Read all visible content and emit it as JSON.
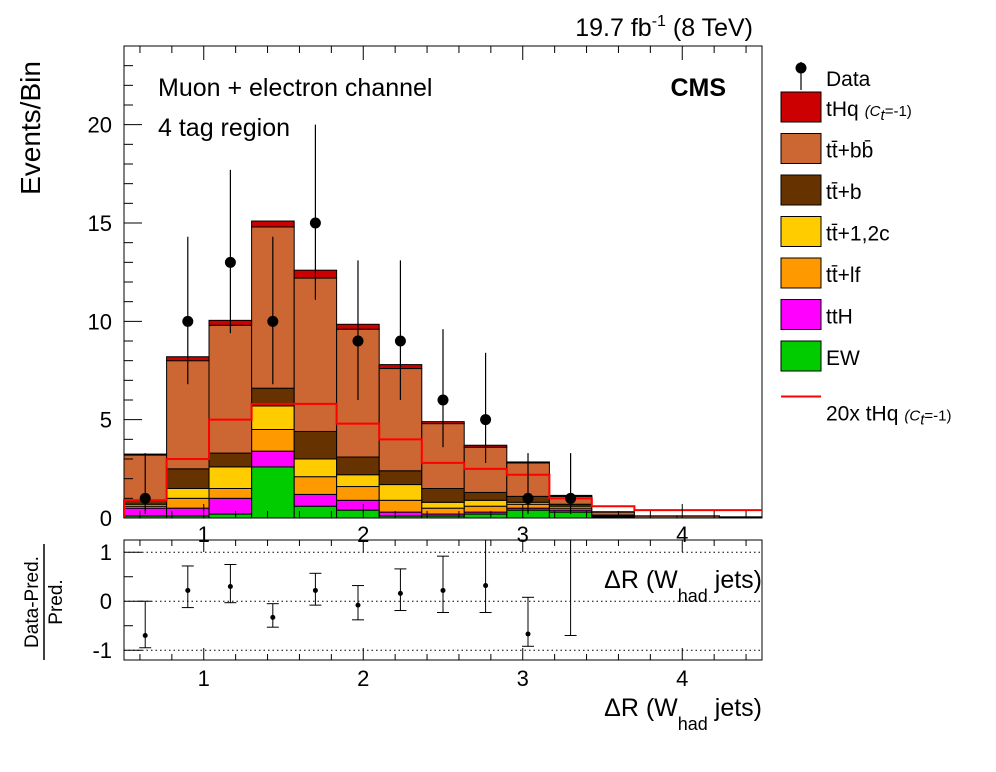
{
  "chart_data": {
    "type": "histogram-stacked",
    "lumi_label": {
      "value": "19.7 fb",
      "sup": "-1",
      "energy": " (8 TeV)"
    },
    "experiment": "CMS",
    "annotations": [
      "Muon + electron channel",
      "4 tag region"
    ],
    "ylabel": "Events/Bin",
    "xlabel": {
      "main": "ΔR (W",
      "sub": "had",
      "tail": " jets)"
    },
    "ratio_ylabel": {
      "num": "Data-Pred.",
      "den": "Pred."
    },
    "xlim": [
      0.5,
      4.5
    ],
    "ylim": [
      0,
      24
    ],
    "ratio_ylim": [
      -1.2,
      1.25
    ],
    "x_ticks": [
      1,
      2,
      3,
      4
    ],
    "y_ticks": [
      0,
      5,
      10,
      15,
      20
    ],
    "ratio_y_ticks": [
      -1,
      0,
      1
    ],
    "bin_edges": [
      0.5,
      0.767,
      1.033,
      1.3,
      1.567,
      1.833,
      2.1,
      2.367,
      2.633,
      2.9,
      3.167,
      3.433,
      3.7,
      3.967,
      4.233,
      4.5
    ],
    "stack": [
      {
        "name": "EW",
        "color": "#00cc00",
        "values": [
          0.1,
          0.1,
          0.2,
          2.6,
          0.6,
          0.4,
          0.1,
          0.1,
          0.2,
          0.4,
          0.3,
          0,
          0,
          0,
          0
        ]
      },
      {
        "name": "ttH",
        "color": "#ff00ff",
        "values": [
          0.4,
          0.4,
          0.8,
          0.8,
          0.6,
          0.5,
          0.2,
          0.1,
          0.1,
          0.1,
          0.1,
          0,
          0,
          0,
          0
        ]
      },
      {
        "name": "tt̄+lf",
        "color": "#ff9900",
        "values": [
          0.1,
          0.5,
          0.5,
          1.1,
          0.9,
          0.7,
          0.6,
          0.3,
          0.3,
          0.2,
          0.1,
          0.05,
          0,
          0,
          0
        ]
      },
      {
        "name": "tt̄+1,2c",
        "color": "#ffcc00",
        "values": [
          0.1,
          0.5,
          1.1,
          1.2,
          0.9,
          0.6,
          0.8,
          0.3,
          0.3,
          0.1,
          0.1,
          0.05,
          0,
          0,
          0
        ]
      },
      {
        "name": "tt̄+b",
        "color": "#663300",
        "values": [
          0.2,
          1.0,
          0.7,
          0.9,
          1.4,
          0.9,
          0.7,
          0.7,
          0.4,
          0.3,
          0.1,
          0.05,
          0,
          0,
          0
        ]
      },
      {
        "name": "tt̄+bb̄",
        "color": "#cc6633",
        "values": [
          2.3,
          5.5,
          6.5,
          8.2,
          7.8,
          6.5,
          5.2,
          3.3,
          2.3,
          1.7,
          0.4,
          0.15,
          0.1,
          0.1,
          0.05
        ]
      },
      {
        "name": "tHq",
        "note": "(C",
        "note_sub": "t",
        "note_tail": "=-1)",
        "color": "#cc0000",
        "values": [
          0.05,
          0.2,
          0.25,
          0.3,
          0.4,
          0.25,
          0.2,
          0.1,
          0.1,
          0.05,
          0.05,
          0.02,
          0.01,
          0.01,
          0.01
        ]
      }
    ],
    "signal_overlay": {
      "name": "20x tHq",
      "note": "(C",
      "note_sub": "t",
      "note_tail": "=-1)",
      "color": "#ff0000",
      "values": [
        0.9,
        3.0,
        5.0,
        5.8,
        5.8,
        4.8,
        4.0,
        2.8,
        2.5,
        2.2,
        1.0,
        0.6,
        0.4,
        0.4,
        0.4
      ]
    },
    "data": {
      "name": "Data",
      "x": [
        0.633,
        0.9,
        1.167,
        1.433,
        1.7,
        1.967,
        2.233,
        2.5,
        2.767,
        3.033,
        3.3
      ],
      "y": [
        1,
        10,
        13,
        10,
        15,
        9,
        9,
        6,
        5,
        1,
        1
      ],
      "err_lo": [
        0.8,
        3.2,
        3.6,
        3.2,
        3.9,
        3.0,
        3.0,
        2.4,
        2.2,
        0.8,
        0.8
      ],
      "err_hi": [
        2.3,
        4.3,
        4.7,
        4.3,
        5.0,
        4.1,
        4.1,
        3.6,
        3.4,
        2.3,
        2.3
      ]
    },
    "ratio": {
      "x": [
        0.633,
        0.9,
        1.167,
        1.433,
        1.7,
        1.967,
        2.233,
        2.5,
        2.767,
        3.033,
        3.3
      ],
      "y": [
        -0.7,
        0.22,
        0.3,
        -0.33,
        0.22,
        -0.08,
        0.16,
        0.22,
        0.32,
        -0.67,
        1.5
      ],
      "err_lo": [
        0.25,
        0.35,
        0.33,
        0.2,
        0.3,
        0.3,
        0.35,
        0.45,
        0.55,
        0.25,
        2.2
      ],
      "err_hi": [
        0.7,
        0.5,
        0.45,
        0.28,
        0.35,
        0.4,
        0.5,
        0.7,
        0.95,
        0.75,
        0
      ]
    },
    "legend_position": "right",
    "ratio_gridlines": [
      -1,
      0,
      1
    ]
  }
}
